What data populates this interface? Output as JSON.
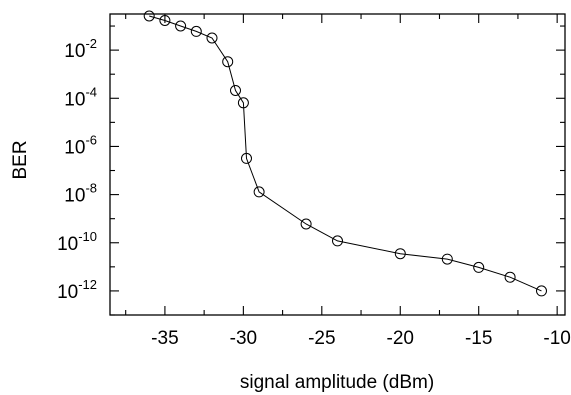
{
  "chart_data": {
    "type": "line",
    "title": "",
    "xlabel": "signal amplitude (dBm)",
    "ylabel": "BER",
    "xlim": [
      -38.5,
      -9.5
    ],
    "ylim_log10": [
      -13,
      -0.5
    ],
    "y_scale": "log",
    "grid": false,
    "legend": "none",
    "x_ticks": [
      {
        "value": -35,
        "label": "-35"
      },
      {
        "value": -30,
        "label": "-30"
      },
      {
        "value": -25,
        "label": "-25"
      },
      {
        "value": -20,
        "label": "-20"
      },
      {
        "value": -15,
        "label": "-15"
      },
      {
        "value": -10,
        "label": "-10"
      }
    ],
    "y_ticks": [
      {
        "exp": -2,
        "base": "10",
        "sup": "-2"
      },
      {
        "exp": -4,
        "base": "10",
        "sup": "-4"
      },
      {
        "exp": -6,
        "base": "10",
        "sup": "-6"
      },
      {
        "exp": -8,
        "base": "10",
        "sup": "-8"
      },
      {
        "exp": -10,
        "base": "10",
        "sup": "-10"
      },
      {
        "exp": -12,
        "base": "10",
        "sup": "-12"
      }
    ],
    "series": [
      {
        "marker": "open-circle",
        "color": "#000000",
        "points": [
          {
            "x": -36.0,
            "y": 0.26
          },
          {
            "x": -35.0,
            "y": 0.17
          },
          {
            "x": -34.0,
            "y": 0.1
          },
          {
            "x": -33.0,
            "y": 0.06
          },
          {
            "x": -32.0,
            "y": 0.032
          },
          {
            "x": -31.0,
            "y": 0.0033
          },
          {
            "x": -30.5,
            "y": 0.00021
          },
          {
            "x": -30.0,
            "y": 6.5e-05
          },
          {
            "x": -29.8,
            "y": 3.2e-07
          },
          {
            "x": -29.0,
            "y": 1.3e-08
          },
          {
            "x": -26.0,
            "y": 6e-10
          },
          {
            "x": -24.0,
            "y": 1.2e-10
          },
          {
            "x": -20.0,
            "y": 3.5e-11
          },
          {
            "x": -17.0,
            "y": 2.1e-11
          },
          {
            "x": -15.0,
            "y": 9.5e-12
          },
          {
            "x": -13.0,
            "y": 3.7e-12
          },
          {
            "x": -11.0,
            "y": 1e-12
          }
        ]
      }
    ]
  }
}
